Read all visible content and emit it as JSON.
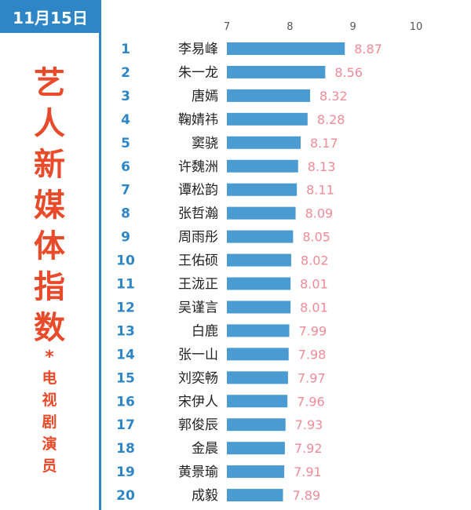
{
  "date_label": "11月15日",
  "title": "艺人新媒体指数",
  "title_chars": [
    "艺",
    "人",
    "新",
    "媒",
    "体",
    "指",
    "数"
  ],
  "title_separator": "*",
  "subtitle": "电视剧演员",
  "subtitle_chars": [
    "电",
    "视",
    "剧",
    "演",
    "员"
  ],
  "colors": {
    "accent": "#2e86c6",
    "title": "#e84a2a",
    "bar": "#4a9bd2",
    "value": "#f08a96"
  },
  "chart_data": {
    "type": "bar",
    "orientation": "horizontal",
    "title": "艺人新媒体指数",
    "subtitle": "电视剧演员",
    "xlim": [
      7,
      10
    ],
    "xticks": [
      7,
      8,
      9,
      10
    ],
    "grid": false,
    "categories": [
      "李易峰",
      "朱一龙",
      "唐嫣",
      "鞠婧祎",
      "窦骁",
      "许魏洲",
      "谭松韵",
      "张哲瀚",
      "周雨彤",
      "王佑硕",
      "王泷正",
      "吴谨言",
      "白鹿",
      "张一山",
      "刘奕畅",
      "宋伊人",
      "郭俊辰",
      "金晨",
      "黄景瑜",
      "成毅"
    ],
    "ranks": [
      "1",
      "2",
      "3",
      "4",
      "5",
      "6",
      "7",
      "8",
      "9",
      "10",
      "11",
      "12",
      "13",
      "14",
      "15",
      "16",
      "17",
      "18",
      "19",
      "20"
    ],
    "values": [
      8.87,
      8.56,
      8.32,
      8.28,
      8.17,
      8.13,
      8.11,
      8.09,
      8.05,
      8.02,
      8.01,
      8.01,
      7.99,
      7.98,
      7.97,
      7.96,
      7.93,
      7.92,
      7.91,
      7.89
    ],
    "value_labels": [
      "8.87",
      "8.56",
      "8.32",
      "8.28",
      "8.17",
      "8.13",
      "8.11",
      "8.09",
      "8.05",
      "8.02",
      "8.01",
      "8.01",
      "7.99",
      "7.98",
      "7.97",
      "7.96",
      "7.93",
      "7.92",
      "7.91",
      "7.89"
    ]
  }
}
